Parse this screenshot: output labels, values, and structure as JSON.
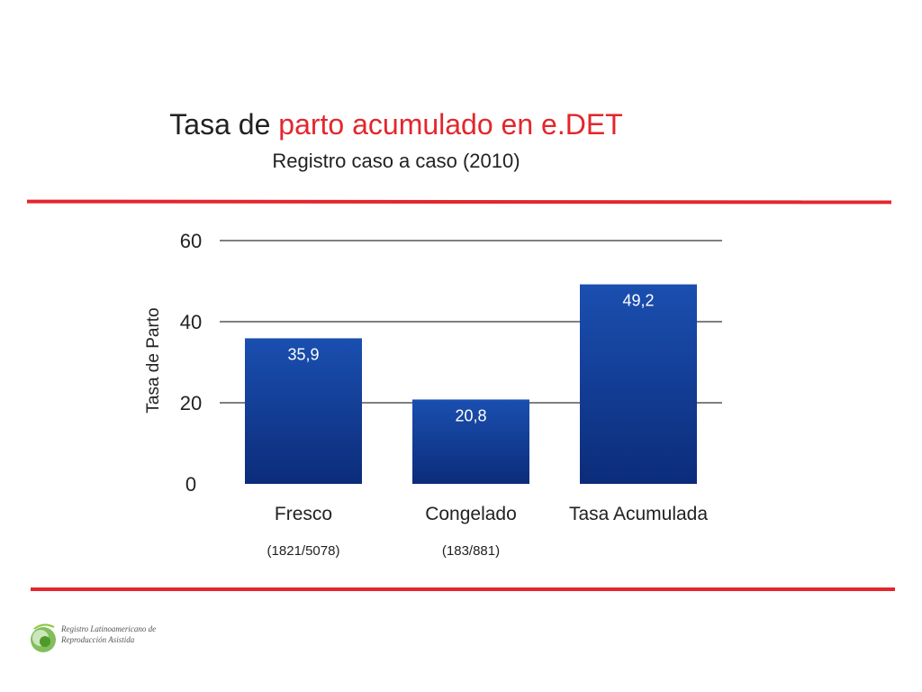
{
  "slide": {
    "title_part1": "Tasa de ",
    "title_accent": "parto acumulado en e.DET",
    "subtitle": "Registro caso a caso (2010)",
    "logo_line1": "Registro Latinoamericano de",
    "logo_line2": "Reproducción Asistida"
  },
  "colors": {
    "accent": "#e3262d",
    "bar_top": "#1a4fb0",
    "bar_bottom": "#0c2c7a"
  },
  "chart_data": {
    "type": "bar",
    "title": "",
    "ylabel": "Tasa de Parto",
    "xlabel": "",
    "ylim": [
      0,
      60
    ],
    "yticks": [
      0,
      20,
      40,
      60
    ],
    "grid": true,
    "categories": [
      "Fresco",
      "Congelado",
      "Tasa Acumulada"
    ],
    "sublabels": [
      "(1821/5078)",
      "(183/881)",
      ""
    ],
    "values": [
      35.9,
      20.8,
      49.2
    ],
    "data_labels": [
      "35,9",
      "20,8",
      "49,2"
    ]
  }
}
